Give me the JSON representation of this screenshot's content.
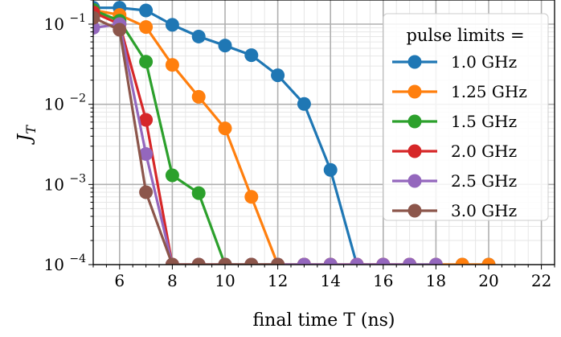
{
  "chart_data": {
    "type": "line",
    "title": "",
    "xlabel": "final time T (ns)",
    "ylabel": "J_T",
    "yscale": "log",
    "xlim": [
      5,
      22.5
    ],
    "ylim": [
      0.0001,
      0.2
    ],
    "grid": true,
    "x_ticks": [
      6,
      8,
      10,
      12,
      14,
      16,
      18,
      20,
      22
    ],
    "x_tick_labels": [
      "6",
      "8",
      "10",
      "12",
      "14",
      "16",
      "18",
      "20",
      "22"
    ],
    "y_ticks": [
      0.0001,
      0.001,
      0.01,
      0.1
    ],
    "y_tick_labels": [
      "10",
      "10",
      "10",
      "10"
    ],
    "y_tick_exponents": [
      "−4",
      "−3",
      "−2",
      "−1"
    ],
    "legend": {
      "title": "pulse limits =",
      "position": "top-right"
    },
    "series": [
      {
        "name": "1.0 GHz",
        "color": "#1f77b4",
        "x": [
          5,
          6,
          7,
          8,
          9,
          10,
          11,
          12,
          13,
          14,
          15,
          16,
          17,
          18,
          19,
          20
        ],
        "y": [
          0.16,
          0.16,
          0.148,
          0.098,
          0.07,
          0.054,
          0.041,
          0.023,
          0.0101,
          0.00152,
          0.0001,
          0.0001,
          0.0001,
          0.0001,
          0.0001,
          0.0001
        ]
      },
      {
        "name": "1.25 GHz",
        "color": "#ff7f0e",
        "x": [
          5,
          6,
          7,
          8,
          9,
          10,
          11,
          12,
          13,
          14,
          15,
          16,
          17,
          18,
          19,
          20
        ],
        "y": [
          0.15,
          0.13,
          0.092,
          0.031,
          0.0124,
          0.005,
          0.0007,
          0.0001,
          0.0001,
          0.0001,
          0.0001,
          0.0001,
          0.0001,
          0.0001,
          0.0001,
          0.0001
        ]
      },
      {
        "name": "1.5 GHz",
        "color": "#2ca02c",
        "x": [
          5,
          6,
          7,
          8,
          9,
          10,
          11,
          12,
          13,
          14
        ],
        "y": [
          0.15,
          0.11,
          0.034,
          0.0013,
          0.00078,
          0.0001,
          0.0001,
          0.0001,
          0.0001,
          0.0001
        ]
      },
      {
        "name": "2.0 GHz",
        "color": "#d62728",
        "x": [
          5,
          6,
          7,
          8,
          9,
          10,
          11,
          12,
          13,
          14,
          15,
          16,
          17
        ],
        "y": [
          0.14,
          0.1,
          0.0064,
          0.0001,
          0.0001,
          0.0001,
          0.0001,
          0.0001,
          0.0001,
          0.0001,
          0.0001,
          0.0001,
          0.0001
        ]
      },
      {
        "name": "2.5 GHz",
        "color": "#9467bd",
        "x": [
          5,
          6,
          7,
          8,
          9,
          10,
          11,
          12,
          13,
          14,
          15,
          16,
          17,
          18
        ],
        "y": [
          0.09,
          0.1,
          0.0024,
          0.0001,
          0.0001,
          0.0001,
          0.0001,
          0.0001,
          0.0001,
          0.0001,
          0.0001,
          0.0001,
          0.0001,
          0.0001
        ]
      },
      {
        "name": "3.0 GHz",
        "color": "#8c564b",
        "x": [
          5,
          6,
          7,
          8,
          9,
          10,
          11,
          12
        ],
        "y": [
          0.12,
          0.085,
          0.0008,
          0.0001,
          0.0001,
          0.0001,
          0.0001,
          0.0001
        ]
      }
    ]
  }
}
